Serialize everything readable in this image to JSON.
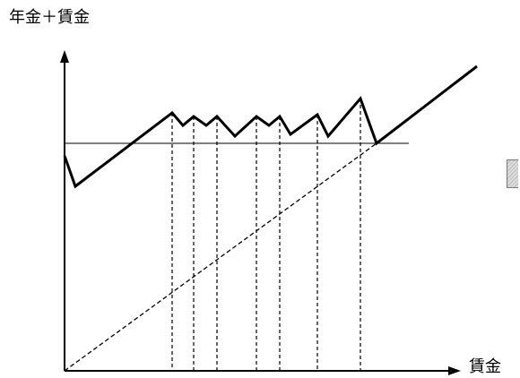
{
  "chart_data": {
    "type": "line",
    "title": "",
    "ylabel": "年金＋賃金",
    "xlabel": "賃金",
    "xlim": [
      0,
      460
    ],
    "ylim": [
      0,
      340
    ],
    "grid": false,
    "series": [
      {
        "style": "solid-thick",
        "points": [
          [
            0,
            240
          ],
          [
            12,
            206
          ],
          [
            120,
            288
          ],
          [
            132,
            274
          ],
          [
            144,
            284
          ],
          [
            158,
            274
          ],
          [
            170,
            284
          ],
          [
            190,
            262
          ],
          [
            214,
            284
          ],
          [
            228,
            274
          ],
          [
            240,
            284
          ],
          [
            252,
            264
          ],
          [
            282,
            286
          ],
          [
            294,
            262
          ],
          [
            330,
            304
          ],
          [
            348,
            254
          ],
          [
            460,
            340
          ]
        ]
      },
      {
        "style": "solid-thin",
        "points": [
          [
            0,
            254
          ],
          [
            384,
            254
          ]
        ]
      },
      {
        "style": "dashed",
        "points": [
          [
            0,
            0
          ],
          [
            348,
            254
          ]
        ]
      }
    ],
    "dashed_verticals": [
      120,
      144,
      170,
      214,
      240,
      282,
      330
    ]
  },
  "colors": {
    "ink": "#000000",
    "background": "#ffffff"
  }
}
